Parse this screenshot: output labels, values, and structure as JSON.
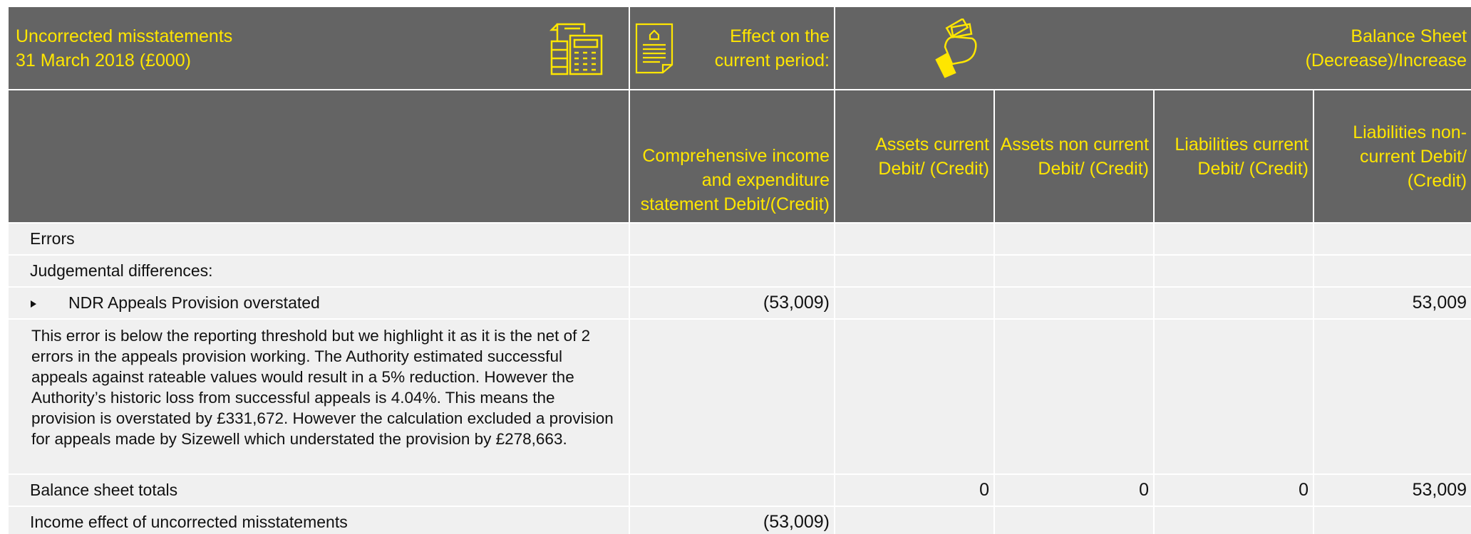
{
  "header": {
    "title": [
      "Uncorrected misstatements",
      "31 March 2018 (£000)"
    ],
    "effect": [
      "Effect on the",
      "current period:"
    ],
    "balance": [
      "Balance Sheet",
      "(Decrease)/Increase"
    ]
  },
  "columns": [
    "Comprehensive income and expenditure statement Debit/(Credit)",
    "Assets current Debit/ (Credit)",
    "Assets non current Debit/ (Credit)",
    "Liabilities current Debit/ (Credit)",
    "Liabilities non-current Debit/ (Credit)"
  ],
  "rows": [
    {
      "label": "Errors"
    },
    {
      "label": "Judgemental differences:"
    },
    {
      "label": "NDR Appeals Provision overstated",
      "cells": [
        "(53,009)",
        null,
        null,
        null,
        "53,009"
      ]
    },
    {
      "label": "This error is below the reporting threshold but we highlight it as it is the net of 2 errors in the appeals provision working. The Authority estimated successful appeals against rateable values would result in a 5% reduction. However the Authority’s historic loss from successful appeals is 4.04%. This means the provision is overstated by £331,672. However the calculation excluded a provision for appeals made by Sizewell which understated the provision by £278,663."
    },
    {
      "label": "Balance sheet totals",
      "cells": [
        null,
        "0",
        "0",
        "0",
        "53,009"
      ]
    },
    {
      "label": "Income effect of uncorrected misstatements",
      "cells": [
        "(53,009)",
        null,
        null,
        null,
        null
      ]
    }
  ]
}
